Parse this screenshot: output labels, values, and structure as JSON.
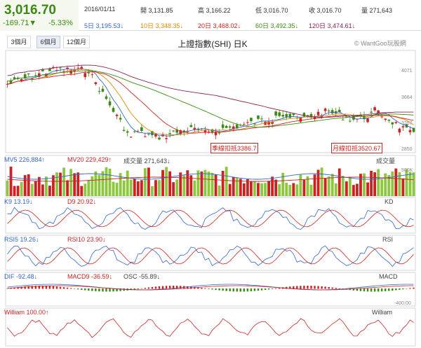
{
  "quote": {
    "price": "3,016.70",
    "change": "-169.71▼",
    "change_pct": "-5.33%",
    "date": "2016/01/11",
    "open_label": "開",
    "open": "3,131.85",
    "high_label": "高",
    "high": "3,166.22",
    "low_label": "低",
    "low": "3,016.70",
    "close_label": "收",
    "close": "3,016.70",
    "volume_label": "量",
    "volume": "271,643"
  },
  "moving_averages": [
    {
      "label": "5日",
      "value": "3,195.53↓",
      "color": "#3366cc"
    },
    {
      "label": "10日",
      "value": "3,348.35↓",
      "color": "#e08a00"
    },
    {
      "label": "20日",
      "value": "3,468.02↓",
      "color": "#cc2222"
    },
    {
      "label": "60日",
      "value": "3,492.35↓",
      "color": "#3d8a12"
    },
    {
      "label": "120日",
      "value": "3,474.61↓",
      "color": "#8b2252"
    }
  ],
  "tabs": [
    "3個月",
    "6個月",
    "12個月"
  ],
  "active_tab": "6個月",
  "chart_title": "上證指數(SHI) 日K",
  "brand": "© WantGoo玩股網",
  "price_axis": [
    "4071",
    "3664",
    "3257",
    "2850"
  ],
  "annotations": {
    "quarter": "季線扣抵3386.7",
    "month": "月線扣抵3520.67"
  },
  "volume_panel": {
    "mv5": "MV5 226,884↑",
    "mv20": "MV20 229,429↑",
    "vol": "成交量 271,643↓",
    "name": "成交量",
    "axis": "500K"
  },
  "kd_panel": {
    "k": "K9 13.19↓",
    "d": "D9 20.92↓",
    "name": "KD"
  },
  "rsi_panel": {
    "rsi5": "RSI5 19.26↓",
    "rsi10": "RSI10 23.90↓",
    "name": "RSI"
  },
  "macd_panel": {
    "dif": "DIF -92.48↓",
    "macd": "MACD9 -36.59↓",
    "osc": "OSC -55.89↓",
    "name": "MACD",
    "axis": "-400.00"
  },
  "william_panel": {
    "w": "William 100.00↑",
    "name": "William"
  },
  "colors": {
    "up": "#cc2222",
    "down": "#3d8a12",
    "accent": "#3366cc"
  }
}
